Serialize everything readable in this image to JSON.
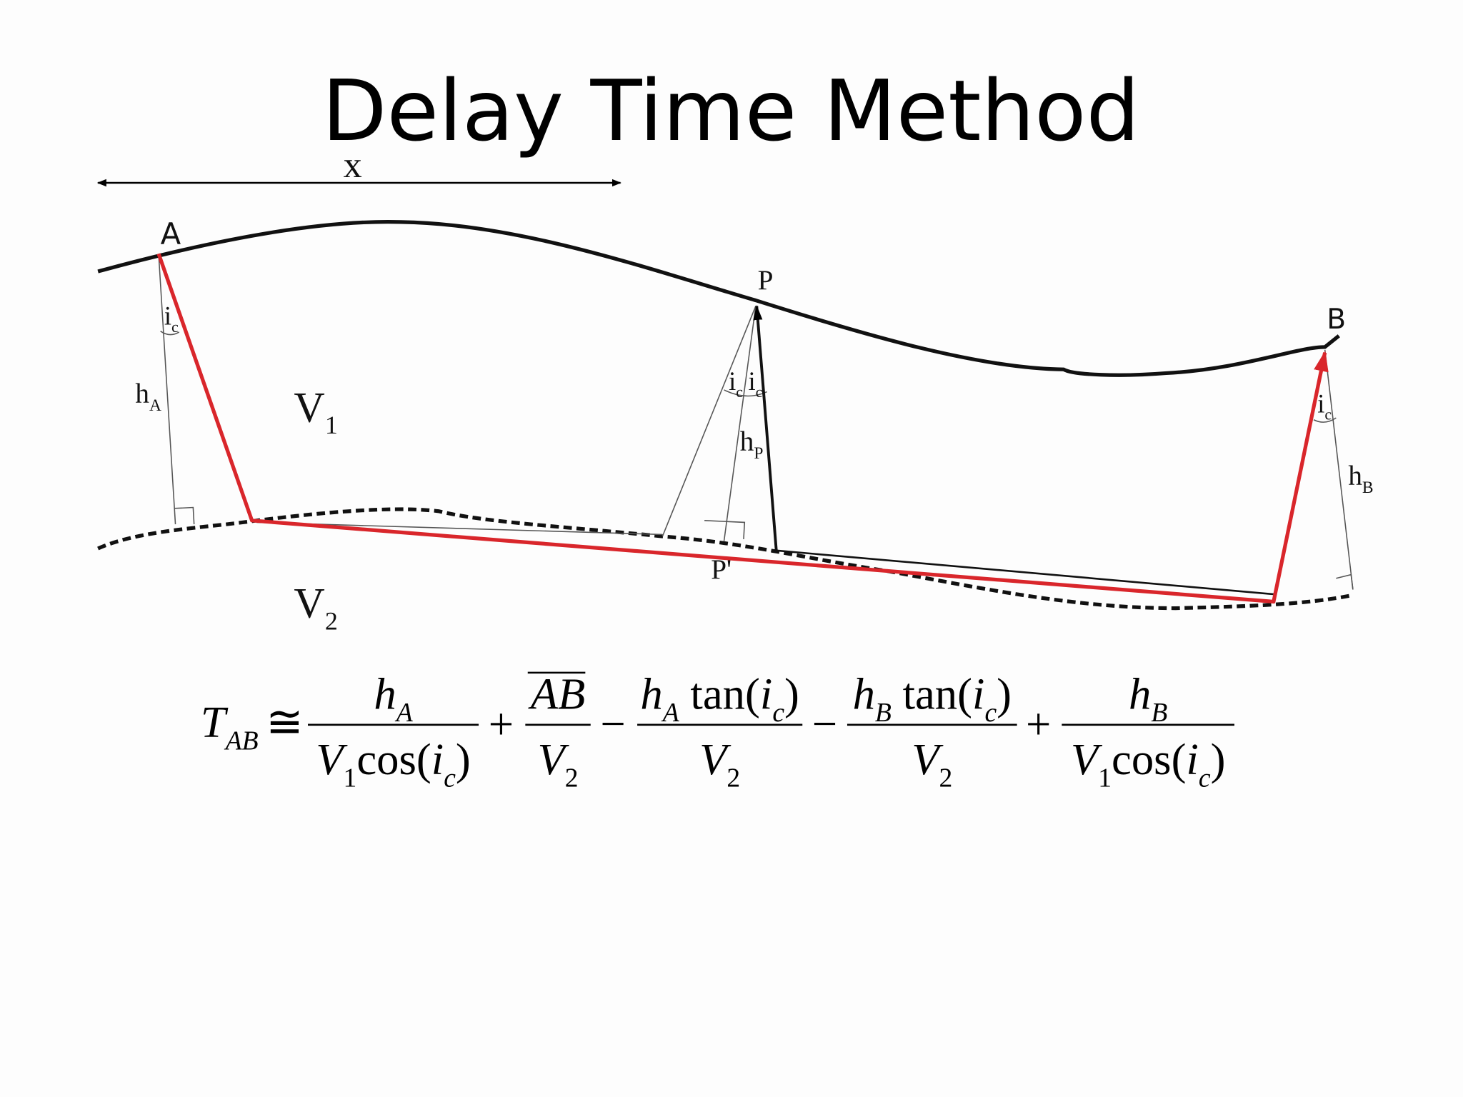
{
  "title": "Delay Time Method",
  "diagram": {
    "labels": [
      {
        "t": "x"
      },
      {
        "t": "A"
      },
      {
        "t": "P"
      },
      {
        "t": "B"
      },
      {
        "t": "i",
        "sub": "c"
      },
      {
        "t": "h",
        "sub": "A"
      },
      {
        "t": "V",
        "sub": "1"
      },
      {
        "t": "i",
        "sub": "c"
      },
      {
        "t": "i",
        "sub": "c"
      },
      {
        "t": "h",
        "sub": "P"
      },
      {
        "t": "i",
        "sub": "c"
      },
      {
        "t": "h",
        "sub": "B"
      },
      {
        "t": "P'"
      },
      {
        "t": "V",
        "sub": "2"
      }
    ]
  },
  "formula": {
    "lhs": [
      {
        "t": "T",
        "sub": "AB"
      }
    ],
    "relation": "≅",
    "terms": [
      {
        "num": [
          {
            "t": "h",
            "sub": "A"
          }
        ],
        "den": [
          {
            "t": "V",
            "sub": "1"
          },
          {
            "t": "cos("
          },
          {
            "t": "i",
            "sub": "c"
          },
          {
            "t": ")"
          }
        ]
      },
      {
        "num": [
          {
            "t": "AB",
            "overline": true
          }
        ],
        "den": [
          {
            "t": "V",
            "sub": "2"
          }
        ]
      },
      {
        "num": [
          {
            "t": "h",
            "sub": "A"
          },
          {
            "t": " tan("
          },
          {
            "t": "i",
            "sub": "c"
          },
          {
            "t": ")"
          }
        ],
        "den": [
          {
            "t": "V",
            "sub": "2"
          }
        ]
      },
      {
        "num": [
          {
            "t": "h",
            "sub": "B"
          },
          {
            "t": " tan("
          },
          {
            "t": "i",
            "sub": "c"
          },
          {
            "t": ")"
          }
        ],
        "den": [
          {
            "t": "V",
            "sub": "2"
          }
        ]
      },
      {
        "num": [
          {
            "t": "h",
            "sub": "B"
          }
        ],
        "den": [
          {
            "t": "V",
            "sub": "1"
          },
          {
            "t": "cos("
          },
          {
            "t": "i",
            "sub": "c"
          },
          {
            "t": ")"
          }
        ]
      }
    ],
    "operators": [
      "+",
      "−",
      "−",
      "+"
    ]
  }
}
